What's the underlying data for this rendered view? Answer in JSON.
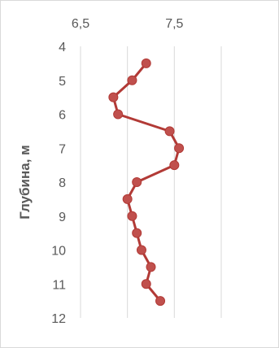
{
  "chart_data": {
    "type": "line",
    "title": "",
    "xlabel": "",
    "ylabel": "Глубина, м",
    "x_ticks": [
      "6,5",
      "7,5"
    ],
    "y_ticks": [
      "4",
      "5",
      "6",
      "7",
      "8",
      "9",
      "10",
      "11",
      "12"
    ],
    "xlim": [
      6.5,
      8.0
    ],
    "ylim": [
      4,
      12
    ],
    "x_axis_position": "top",
    "y_axis_inverted": true,
    "grid": "vertical",
    "legend": "none",
    "series": [
      {
        "line_color": "#b23a36",
        "marker_color": "#c0504d",
        "points": [
          {
            "x": 7.2,
            "y": 4.5
          },
          {
            "x": 7.05,
            "y": 5.0
          },
          {
            "x": 6.85,
            "y": 5.5
          },
          {
            "x": 6.9,
            "y": 6.0
          },
          {
            "x": 7.45,
            "y": 6.5
          },
          {
            "x": 7.55,
            "y": 7.0
          },
          {
            "x": 7.5,
            "y": 7.5
          },
          {
            "x": 7.1,
            "y": 8.0
          },
          {
            "x": 7.0,
            "y": 8.5
          },
          {
            "x": 7.05,
            "y": 9.0
          },
          {
            "x": 7.1,
            "y": 9.5
          },
          {
            "x": 7.15,
            "y": 10.0
          },
          {
            "x": 7.25,
            "y": 10.5
          },
          {
            "x": 7.2,
            "y": 11.0
          },
          {
            "x": 7.35,
            "y": 11.5
          }
        ]
      }
    ]
  }
}
